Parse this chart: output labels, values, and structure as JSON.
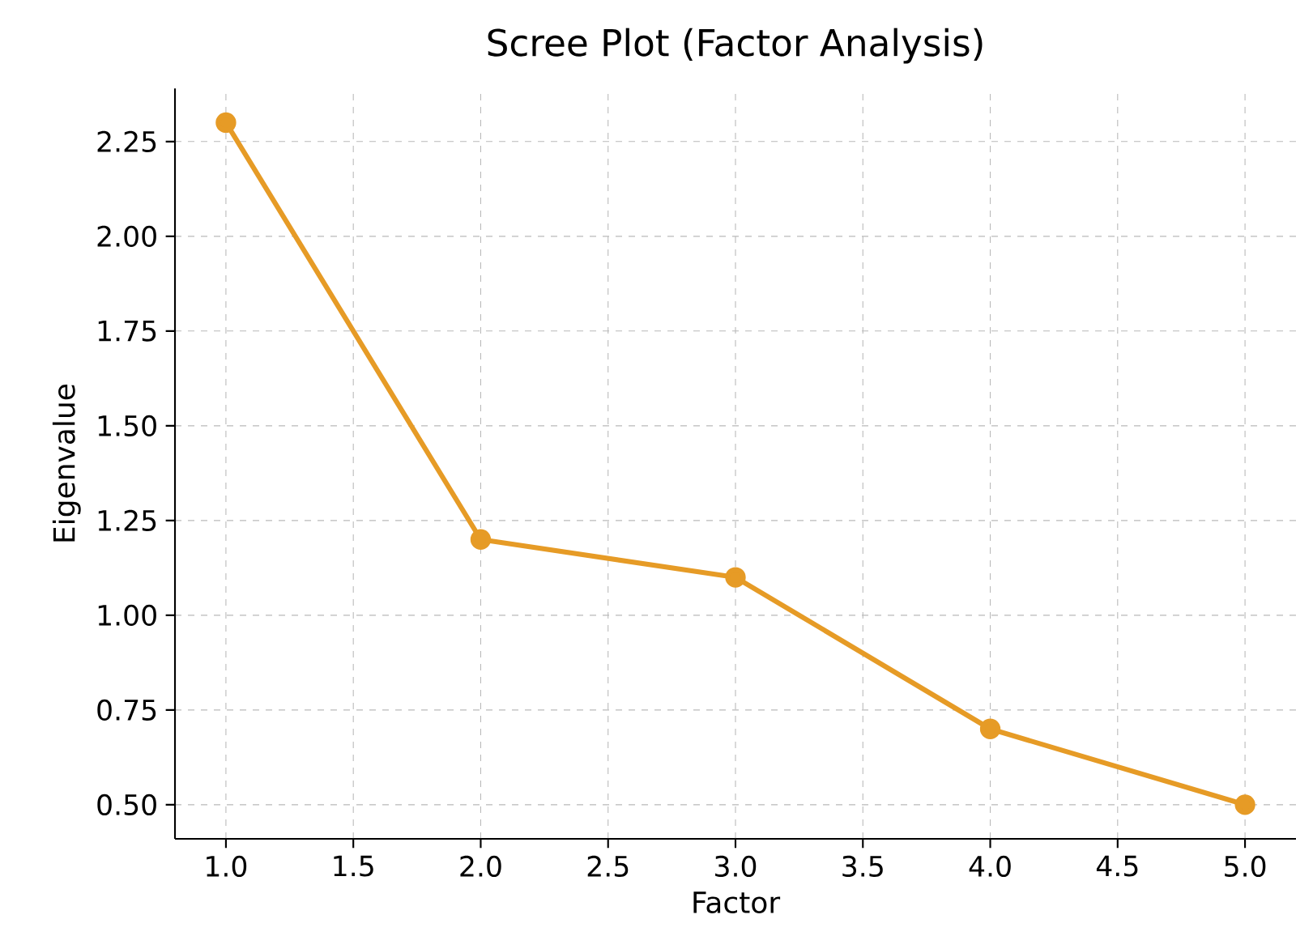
{
  "chart_data": {
    "type": "line",
    "title": "Scree Plot (Factor Analysis)",
    "xlabel": "Factor",
    "ylabel": "Eigenvalue",
    "x": [
      1,
      2,
      3,
      4,
      5
    ],
    "series": [
      {
        "color": "#e69b26",
        "values": [
          2.3,
          1.2,
          1.1,
          0.7,
          0.5
        ]
      }
    ],
    "xlim": [
      0.8,
      5.2
    ],
    "ylim": [
      0.41,
      2.39
    ],
    "xticks": [
      {
        "value": 1,
        "label": "1.0"
      },
      {
        "value": 1.5,
        "label": "1.5"
      },
      {
        "value": 2,
        "label": "2.0"
      },
      {
        "value": 2.5,
        "label": "2.5"
      },
      {
        "value": 3,
        "label": "3.0"
      },
      {
        "value": 3.5,
        "label": "3.5"
      },
      {
        "value": 4,
        "label": "4.0"
      },
      {
        "value": 4.5,
        "label": "4.5"
      },
      {
        "value": 5,
        "label": "5.0"
      }
    ],
    "yticks": [
      {
        "value": 0.5,
        "label": "0.50"
      },
      {
        "value": 0.75,
        "label": "0.75"
      },
      {
        "value": 1,
        "label": "1.00"
      },
      {
        "value": 1.25,
        "label": "1.25"
      },
      {
        "value": 1.5,
        "label": "1.50"
      },
      {
        "value": 1.75,
        "label": "1.75"
      },
      {
        "value": 2,
        "label": "2.00"
      },
      {
        "value": 2.25,
        "label": "2.25"
      }
    ],
    "grid": true,
    "marker": "circle",
    "line_style": "solid"
  }
}
